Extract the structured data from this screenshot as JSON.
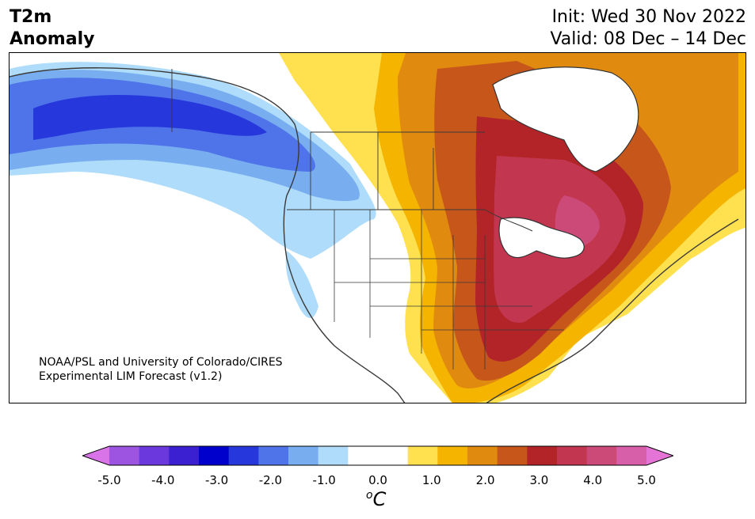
{
  "title": {
    "line1": "T2m",
    "line2": "Anomaly",
    "init": "Init: Wed 30 Nov 2022",
    "valid": "Valid: 08 Dec – 14 Dec"
  },
  "credit": {
    "line1": "NOAA/PSL and University of Colorado/CIRES",
    "line2": "Experimental LIM Forecast (v1.2)"
  },
  "map": {
    "variable": "2-meter temperature anomaly",
    "region": "North America",
    "pattern": "cold anomalies over Alaska and western Canada, warm anomalies over central and eastern US and Canada"
  },
  "colorbar": {
    "unit_symbol": "o",
    "unit_letter": "C",
    "ticks": [
      "-5.0",
      "-4.0",
      "-3.0",
      "-2.0",
      "-1.0",
      "0.0",
      "1.0",
      "2.0",
      "3.0",
      "4.0",
      "5.0"
    ],
    "colors": [
      "#d873e8",
      "#9d54e0",
      "#6a38dc",
      "#3b20d2",
      "#0000cc",
      "#2638dc",
      "#4f73e8",
      "#78aef0",
      "#aedcfa",
      "#ffffff",
      "#ffffff",
      "#ffe04f",
      "#f5b400",
      "#e08a10",
      "#c6561a",
      "#b32428",
      "#c23650",
      "#cc4a78",
      "#d75ea8",
      "#e474d6"
    ]
  }
}
